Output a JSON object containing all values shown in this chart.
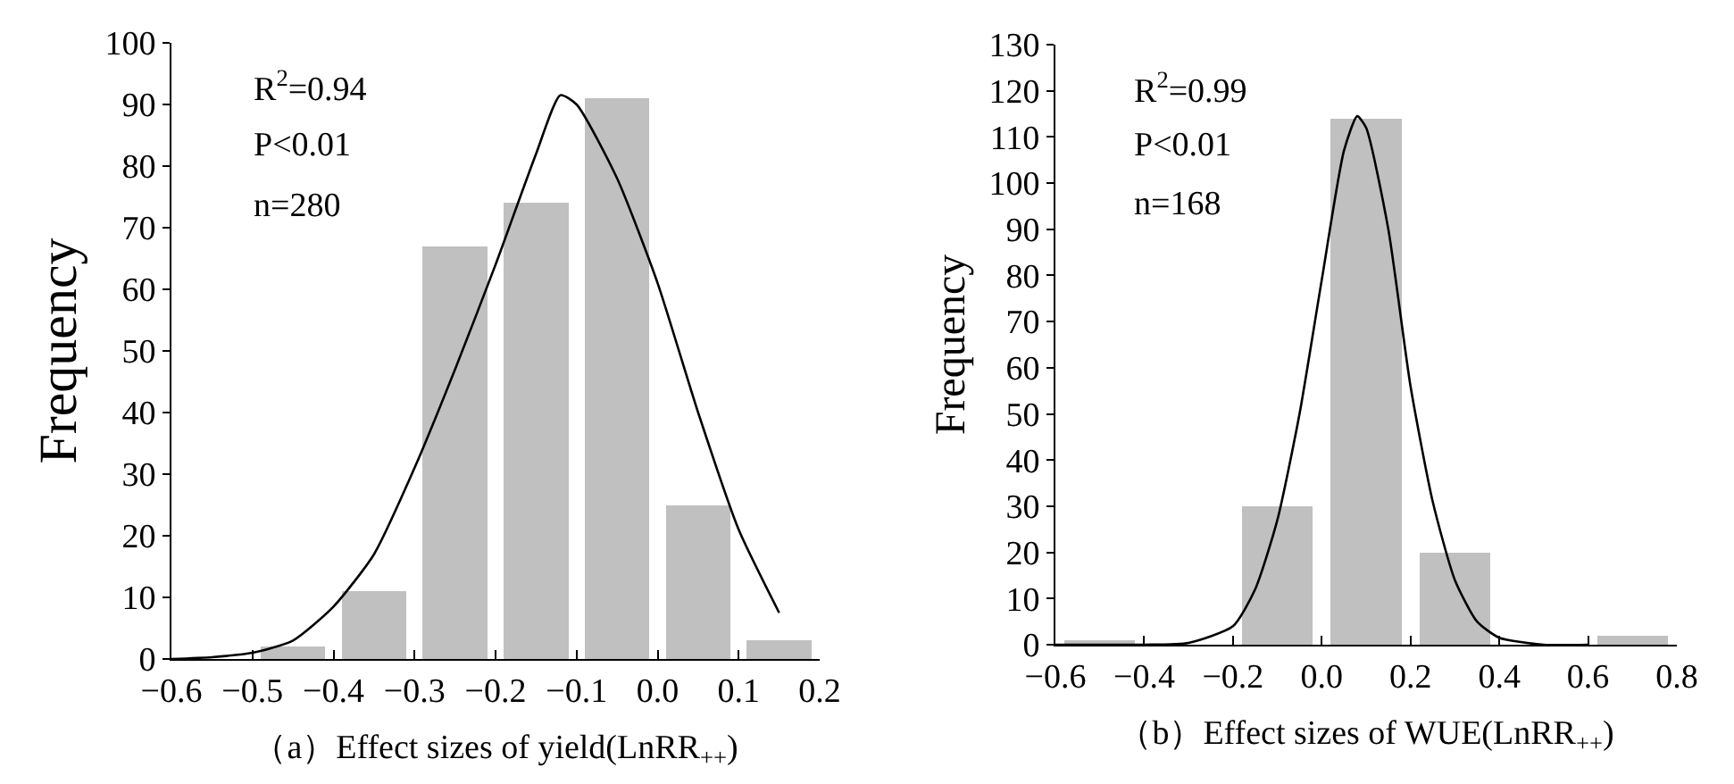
{
  "chart_data": [
    {
      "type": "histogram",
      "xlabel": "（a）Effect sizes of yield(LnRR$_{++}$)",
      "ylabel": "Frequency",
      "xlim": [
        -0.6,
        0.2
      ],
      "xticks": [
        {
          "value": -0.6,
          "label": "−0.6"
        },
        {
          "value": -0.5,
          "label": "−0.5"
        },
        {
          "value": -0.4,
          "label": "−0.4"
        },
        {
          "value": -0.3,
          "label": "−0.3"
        },
        {
          "value": -0.2,
          "label": "−0.2"
        },
        {
          "value": -0.1,
          "label": "−0.1"
        },
        {
          "value": 0,
          "label": "0.0"
        },
        {
          "value": 0.1,
          "label": "0.1"
        },
        {
          "value": 0.2,
          "label": "0.2"
        }
      ],
      "ylim": [
        0,
        100
      ],
      "yticks": [
        0,
        10,
        20,
        30,
        40,
        50,
        60,
        70,
        80,
        90,
        100
      ],
      "grid": false,
      "annotations": [
        "R$^{2}$=0.94",
        "P<0.01",
        "n=280"
      ],
      "series": [
        {
          "color": "#c0c0c0",
          "bins": [
            -0.5,
            -0.4,
            -0.3,
            -0.2,
            -0.1,
            0,
            0.1,
            0.2
          ],
          "values": [
            2,
            11,
            67,
            74,
            91,
            25,
            3
          ]
        },
        {
          "type": "line",
          "color": "#000000",
          "x": [
            -0.6,
            -0.55,
            -0.5,
            -0.45,
            -0.4,
            -0.35,
            -0.3,
            -0.25,
            -0.2,
            -0.15,
            -0.12,
            -0.1,
            -0.05,
            0,
            0.05,
            0.1,
            0.15
          ],
          "values": [
            0,
            0.3,
            1,
            3,
            8.5,
            17,
            31,
            47,
            64,
            82,
            91.5,
            90,
            78,
            61,
            40,
            21,
            7.5
          ]
        }
      ]
    },
    {
      "type": "histogram",
      "xlabel": "（b）Effect sizes of WUE(LnRR$_{++}$)",
      "ylabel": "Frequency",
      "xlim": [
        -0.6,
        0.8
      ],
      "xticks": [
        {
          "value": -0.6,
          "label": "−0.6"
        },
        {
          "value": -0.4,
          "label": "−0.4"
        },
        {
          "value": -0.2,
          "label": "−0.2"
        },
        {
          "value": 0,
          "label": "0.0"
        },
        {
          "value": 0.2,
          "label": "0.2"
        },
        {
          "value": 0.4,
          "label": "0.4"
        },
        {
          "value": 0.6,
          "label": "0.6"
        },
        {
          "value": 0.8,
          "label": "0.8"
        }
      ],
      "ylim": [
        0,
        130
      ],
      "yticks": [
        0,
        10,
        20,
        30,
        40,
        50,
        60,
        70,
        80,
        90,
        100,
        110,
        120,
        130
      ],
      "grid": false,
      "annotations": [
        "R$^{2}$=0.99",
        "P<0.01",
        "n=168"
      ],
      "series": [
        {
          "color": "#c0c0c0",
          "bins": [
            -0.6,
            -0.4,
            -0.2,
            0,
            0.2,
            0.4,
            0.6,
            0.8
          ],
          "values": [
            1,
            0,
            30,
            114,
            20,
            0,
            2
          ]
        },
        {
          "type": "line",
          "color": "#000000",
          "x": [
            -0.6,
            -0.4,
            -0.3,
            -0.2,
            -0.15,
            -0.1,
            -0.05,
            0,
            0.05,
            0.08,
            0.1,
            0.15,
            0.2,
            0.25,
            0.3,
            0.35,
            0.4,
            0.5,
            0.6
          ],
          "values": [
            0,
            0,
            0.4,
            4,
            12,
            27,
            50,
            79,
            107,
            114.5,
            112,
            90,
            56,
            31,
            14,
            5,
            1.5,
            0,
            0
          ]
        }
      ]
    }
  ]
}
